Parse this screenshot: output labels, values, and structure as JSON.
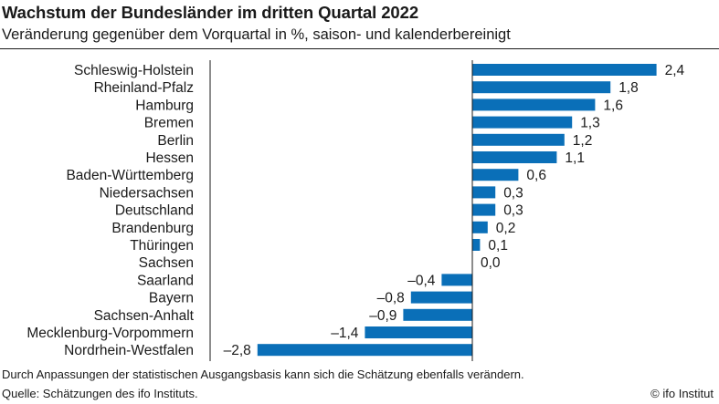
{
  "header": {
    "title": "Wachstum der Bundesländer im dritten Quartal 2022",
    "subtitle": "Veränderung gegenüber dem Vorquartal in %, saison- und kalenderbereinigt"
  },
  "footer": {
    "note": "Durch Anpassungen der statistischen Ausgangsbasis kann sich die Schätzung ebenfalls verändern.",
    "source": "Quelle: Schätzungen des ifo Instituts.",
    "credit": "© ifo Institut"
  },
  "colors": {
    "bar": "#0a6fb8",
    "text": "#1a1a1a"
  },
  "chart_data": {
    "type": "bar",
    "orientation": "horizontal",
    "title": "Wachstum der Bundesländer im dritten Quartal 2022",
    "subtitle": "Veränderung gegenüber dem Vorquartal in %, saison- und kalenderbereinigt",
    "xlabel": "",
    "ylabel": "",
    "xlim": [
      -2.8,
      2.4
    ],
    "grid": false,
    "categories": [
      "Schleswig-Holstein",
      "Rheinland-Pfalz",
      "Hamburg",
      "Bremen",
      "Berlin",
      "Hessen",
      "Baden-Württemberg",
      "Niedersachsen",
      "Deutschland",
      "Brandenburg",
      "Thüringen",
      "Sachsen",
      "Saarland",
      "Bayern",
      "Sachsen-Anhalt",
      "Mecklenburg-Vorpommern",
      "Nordrhein-Westfalen"
    ],
    "values": [
      2.4,
      1.8,
      1.6,
      1.3,
      1.2,
      1.1,
      0.6,
      0.3,
      0.3,
      0.2,
      0.1,
      0.0,
      -0.4,
      -0.8,
      -0.9,
      -1.4,
      -2.8
    ],
    "value_labels": [
      "2,4",
      "1,8",
      "1,6",
      "1,3",
      "1,2",
      "1,1",
      "0,6",
      "0,3",
      "0,3",
      "0,2",
      "0,1",
      "0,0",
      "–0,4",
      "–0,8",
      "–0,9",
      "–1,4",
      "–2,8"
    ]
  }
}
